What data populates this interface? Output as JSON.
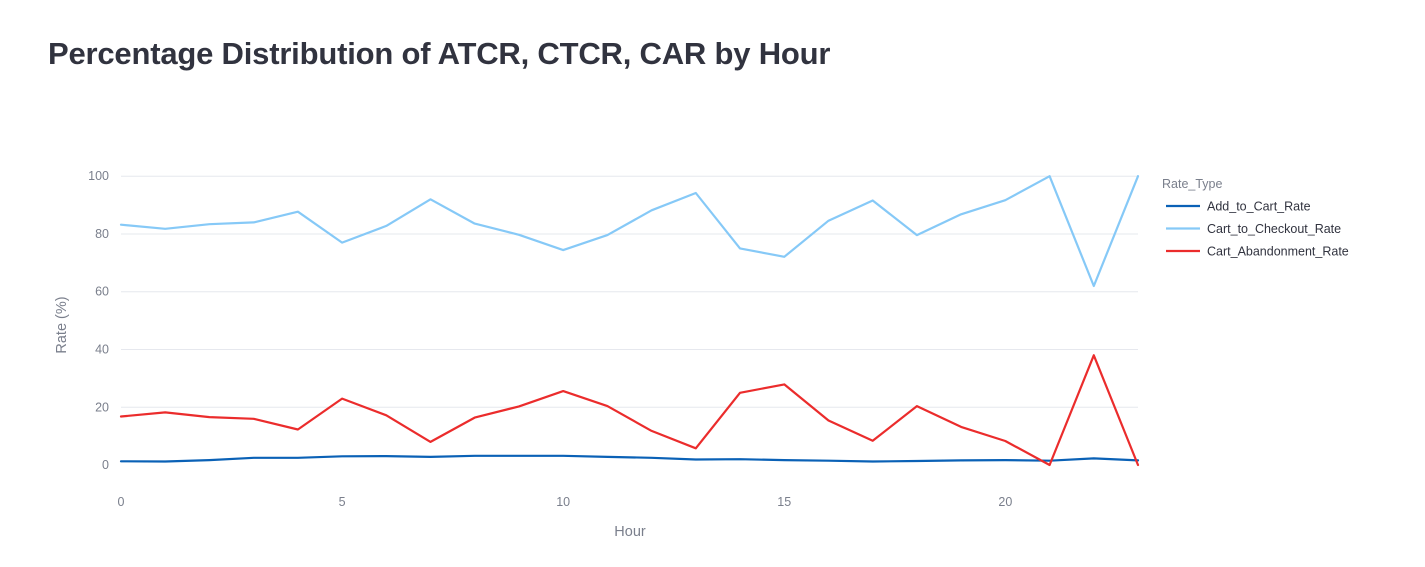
{
  "chart_data": {
    "type": "line",
    "title": "Percentage Distribution of ATCR, CTCR, CAR by Hour",
    "xlabel": "Hour",
    "ylabel": "Rate (%)",
    "legend_title": "Rate_Type",
    "legend_position": "top-right",
    "grid": "horizontal",
    "xlim": [
      0,
      23
    ],
    "ylim": [
      -9,
      107
    ],
    "xticks": [
      0,
      5,
      10,
      15,
      20
    ],
    "yticks": [
      0,
      20,
      40,
      60,
      80,
      100
    ],
    "x": [
      0,
      1,
      2,
      3,
      4,
      5,
      6,
      7,
      8,
      9,
      10,
      11,
      12,
      13,
      14,
      15,
      16,
      17,
      18,
      19,
      20,
      21,
      22,
      23
    ],
    "series": [
      {
        "name": "Add_to_Cart_Rate",
        "color": "#0a61b6",
        "values": [
          1.3,
          1.2,
          1.7,
          2.5,
          2.5,
          3.0,
          3.1,
          2.8,
          3.2,
          3.2,
          3.2,
          2.8,
          2.5,
          1.9,
          2.0,
          1.7,
          1.5,
          1.2,
          1.4,
          1.6,
          1.7,
          1.5,
          2.3,
          1.6
        ]
      },
      {
        "name": "Cart_to_Checkout_Rate",
        "color": "#86c9f7",
        "values": [
          83.2,
          81.8,
          83.4,
          84.0,
          87.7,
          77.0,
          82.8,
          92.0,
          83.6,
          79.7,
          74.4,
          79.6,
          88.2,
          94.2,
          75.0,
          72.1,
          84.6,
          91.6,
          79.6,
          86.8,
          91.7,
          100.0,
          62.0,
          100.0
        ]
      },
      {
        "name": "Cart_Abandonment_Rate",
        "color": "#eb2c2c",
        "values": [
          16.8,
          18.2,
          16.6,
          16.0,
          12.3,
          23.0,
          17.2,
          8.0,
          16.4,
          20.3,
          25.6,
          20.4,
          11.8,
          5.8,
          25.0,
          27.9,
          15.4,
          8.4,
          20.4,
          13.2,
          8.3,
          0.0,
          38.0,
          0.0
        ]
      }
    ]
  }
}
